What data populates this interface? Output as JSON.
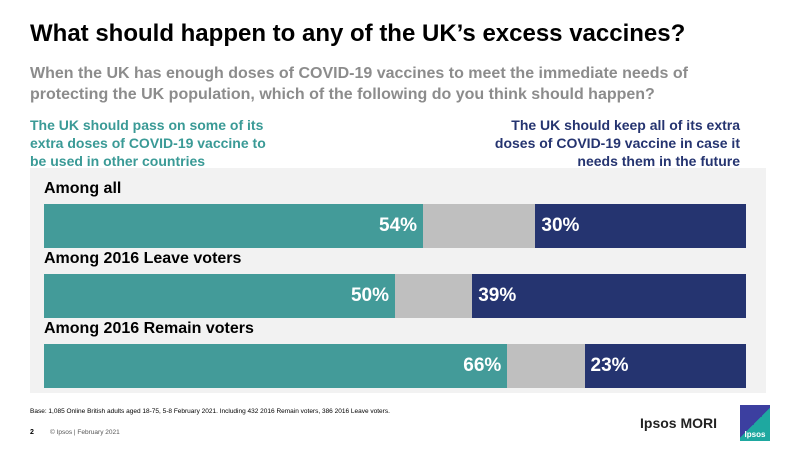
{
  "title": "What should happen to any of the UK’s excess vaccines?",
  "subtitle": "When the UK has enough doses of COVID-19 vaccines to meet the immediate needs of protecting the UK population, which of the following do you think should happen?",
  "colors": {
    "pass_on": "#439b99",
    "neither": "#bfbfbf",
    "keep": "#253470"
  },
  "chart_data": {
    "type": "bar",
    "stacked": true,
    "orientation": "horizontal",
    "categories": [
      "Among all",
      "Among 2016 Leave voters",
      "Among 2016 Remain voters"
    ],
    "series": [
      {
        "name": "The UK should pass on some of its extra doses of COVID-19 vaccine to be used in other countries",
        "values": [
          54,
          50,
          66
        ],
        "labels": [
          "54%",
          "50%",
          "66%"
        ]
      },
      {
        "values": [
          16,
          11,
          11
        ]
      },
      {
        "name": "The UK should keep all of its extra doses of COVID-19 vaccine in case it needs them in the future",
        "values": [
          30,
          39,
          23
        ],
        "labels": [
          "30%",
          "39%",
          "23%"
        ]
      }
    ],
    "xlim": [
      0,
      100
    ]
  },
  "footer": {
    "base": "Base: 1,085 Online British adults aged 18-75, 5-8 February 2021. Including 432 2016 Remain voters, 386 2016 Leave voters.",
    "page": "2",
    "copyright": "© Ipsos | February 2021",
    "brand": "Ipsos MORI",
    "logo_text": "Ipsos"
  }
}
